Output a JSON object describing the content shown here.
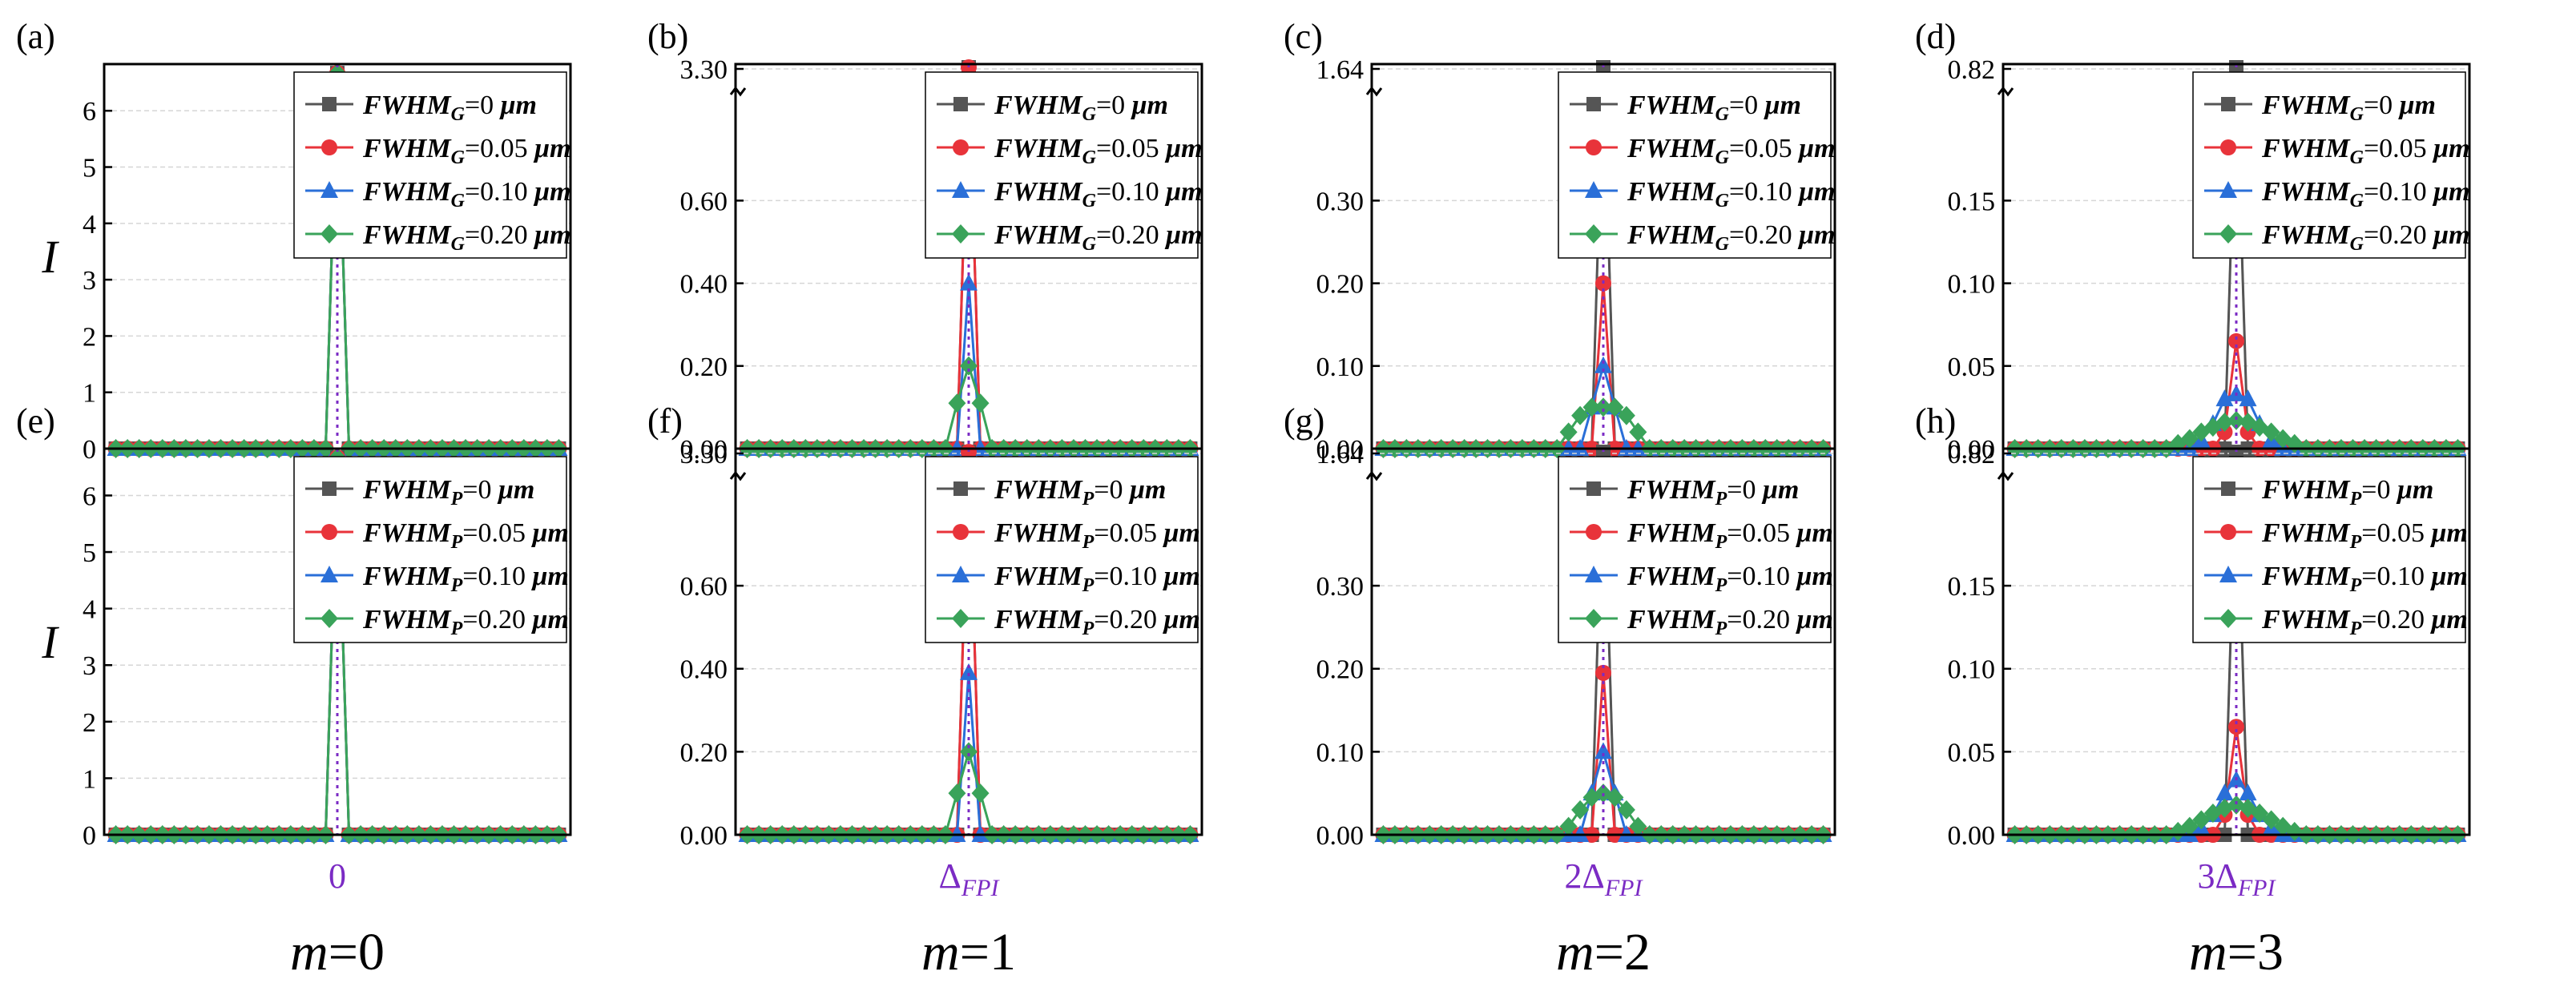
{
  "chart_data": {
    "type": "line",
    "layout": "2x4 grid of panels",
    "marker_order": [
      "square",
      "circle",
      "triangle",
      "diamond"
    ],
    "colors": [
      "#555555",
      "#e8333a",
      "#2a6fd8",
      "#3aa35a"
    ],
    "center_line_color": "#7b2bc4",
    "x_positions": [
      -19,
      -18,
      -17,
      -16,
      -15,
      -14,
      -13,
      -12,
      -11,
      -10,
      -9,
      -8,
      -7,
      -6,
      -5,
      -4,
      -3,
      -2,
      -1,
      0,
      1,
      2,
      3,
      4,
      5,
      6,
      7,
      8,
      9,
      10,
      11,
      12,
      13,
      14,
      15,
      16,
      17,
      18,
      19
    ],
    "columns": [
      {
        "x_center_label": "0",
        "m_label": "m=0",
        "m_var": "m",
        "m_rest": "=0"
      },
      {
        "x_center_label": "ΔFPI",
        "x_center_prefix": "",
        "x_center_main": "Δ",
        "x_center_sub": "FPI",
        "m_label": "m=1",
        "m_var": "m",
        "m_rest": "=1"
      },
      {
        "x_center_label": "2ΔFPI",
        "x_center_prefix": "2",
        "x_center_main": "Δ",
        "x_center_sub": "FPI",
        "m_label": "m=2",
        "m_var": "m",
        "m_rest": "=2"
      },
      {
        "x_center_label": "3ΔFPI",
        "x_center_prefix": "3",
        "x_center_main": "Δ",
        "x_center_sub": "FPI",
        "m_label": "m=3",
        "m_var": "m",
        "m_rest": "=3"
      }
    ],
    "panels": [
      {
        "id": "a",
        "label": "(a)",
        "row": 0,
        "col": 0,
        "ylabel": "I",
        "yaxis": "linear",
        "ylim": [
          0,
          6.8
        ],
        "yticks": [
          "0",
          "1",
          "2",
          "3",
          "4",
          "5",
          "6"
        ],
        "ytick_values": [
          0,
          1,
          2,
          3,
          4,
          5,
          6
        ],
        "legend_sub": "G",
        "legend_title": "FWHM",
        "series": [
          {
            "name": "FWHMG=0 μm",
            "value_text": "=0",
            "points": [
              [
                0,
                6.67
              ]
            ]
          },
          {
            "name": "FWHMG=0.05 μm",
            "value_text": "=0.05",
            "points": [
              [
                0,
                6.67
              ]
            ]
          },
          {
            "name": "FWHMG=0.10 μm",
            "value_text": "=0.10",
            "points": [
              [
                0,
                6.67
              ]
            ]
          },
          {
            "name": "FWHMG=0.20 μm",
            "value_text": "=0.20",
            "points": [
              [
                0,
                6.67
              ]
            ]
          }
        ]
      },
      {
        "id": "b",
        "label": "(b)",
        "row": 0,
        "col": 1,
        "yaxis": "broken",
        "yticks": [
          "0.00",
          "0.20",
          "0.40",
          "0.60",
          "3.30"
        ],
        "ytick_values": [
          0,
          0.2,
          0.4,
          0.6,
          3.3
        ],
        "legend_sub": "G",
        "legend_title": "FWHM",
        "series": [
          {
            "name": "FWHMG=0 μm",
            "value_text": "=0",
            "points": [
              [
                0,
                3.3
              ]
            ]
          },
          {
            "name": "FWHMG=0.05 μm",
            "value_text": "=0.05",
            "points": [
              [
                -1,
                0.0
              ],
              [
                0,
                0.79
              ],
              [
                1,
                0.0
              ]
            ]
          },
          {
            "name": "FWHMG=0.10 μm",
            "value_text": "=0.10",
            "points": [
              [
                -1,
                0.0
              ],
              [
                0,
                0.4
              ],
              [
                1,
                0.0
              ]
            ]
          },
          {
            "name": "FWHMG=0.20 μm",
            "value_text": "=0.20",
            "points": [
              [
                -2,
                0.0
              ],
              [
                -1,
                0.11
              ],
              [
                0,
                0.2
              ],
              [
                1,
                0.11
              ],
              [
                2,
                0.0
              ]
            ]
          }
        ]
      },
      {
        "id": "c",
        "label": "(c)",
        "row": 0,
        "col": 2,
        "yaxis": "broken",
        "yticks": [
          "0.00",
          "0.10",
          "0.20",
          "0.30",
          "1.64"
        ],
        "ytick_values": [
          0,
          0.1,
          0.2,
          0.3,
          1.64
        ],
        "legend_sub": "G",
        "legend_title": "FWHM",
        "series": [
          {
            "name": "FWHMG=0 μm",
            "value_text": "=0",
            "points": [
              [
                0,
                1.64
              ]
            ]
          },
          {
            "name": "FWHMG=0.05 μm",
            "value_text": "=0.05",
            "points": [
              [
                -1,
                0.0
              ],
              [
                0,
                0.2
              ],
              [
                1,
                0.0
              ]
            ]
          },
          {
            "name": "FWHMG=0.10 μm",
            "value_text": "=0.10",
            "points": [
              [
                -2,
                0.0
              ],
              [
                -1,
                0.05
              ],
              [
                0,
                0.1
              ],
              [
                1,
                0.05
              ],
              [
                2,
                0.0
              ]
            ]
          },
          {
            "name": "FWHMG=0.20 μm",
            "value_text": "=0.20",
            "points": [
              [
                -4,
                0.0
              ],
              [
                -3,
                0.02
              ],
              [
                -2,
                0.04
              ],
              [
                -1,
                0.05
              ],
              [
                0,
                0.05
              ],
              [
                1,
                0.05
              ],
              [
                2,
                0.04
              ],
              [
                3,
                0.02
              ],
              [
                4,
                0.0
              ]
            ]
          }
        ]
      },
      {
        "id": "d",
        "label": "(d)",
        "row": 0,
        "col": 3,
        "yaxis": "broken",
        "yticks": [
          "0.00",
          "0.05",
          "0.10",
          "0.15",
          "0.82"
        ],
        "ytick_values": [
          0,
          0.05,
          0.1,
          0.15,
          0.82
        ],
        "legend_sub": "G",
        "legend_title": "FWHM",
        "series": [
          {
            "name": "FWHMG=0 μm",
            "value_text": "=0",
            "points": [
              [
                0,
                0.82
              ]
            ]
          },
          {
            "name": "FWHMG=0.05 μm",
            "value_text": "=0.05",
            "points": [
              [
                -2,
                0.0
              ],
              [
                -1,
                0.01
              ],
              [
                0,
                0.065
              ],
              [
                1,
                0.01
              ],
              [
                2,
                0.0
              ]
            ]
          },
          {
            "name": "FWHMG=0.10 μm",
            "value_text": "=0.10",
            "points": [
              [
                -4,
                0.0
              ],
              [
                -3,
                0.005
              ],
              [
                -2,
                0.015
              ],
              [
                -1,
                0.03
              ],
              [
                0,
                0.033
              ],
              [
                1,
                0.03
              ],
              [
                2,
                0.015
              ],
              [
                3,
                0.005
              ],
              [
                4,
                0.0
              ]
            ]
          },
          {
            "name": "FWHMG=0.20 μm",
            "value_text": "=0.20",
            "points": [
              [
                -5,
                0.003
              ],
              [
                -4,
                0.006
              ],
              [
                -3,
                0.01
              ],
              [
                -2,
                0.013
              ],
              [
                -1,
                0.016
              ],
              [
                0,
                0.017
              ],
              [
                1,
                0.016
              ],
              [
                2,
                0.013
              ],
              [
                3,
                0.01
              ],
              [
                4,
                0.006
              ],
              [
                5,
                0.003
              ]
            ]
          }
        ]
      },
      {
        "id": "e",
        "label": "(e)",
        "row": 1,
        "col": 0,
        "ylabel": "I",
        "yaxis": "linear",
        "ylim": [
          0,
          6.8
        ],
        "yticks": [
          "0",
          "1",
          "2",
          "3",
          "4",
          "5",
          "6"
        ],
        "ytick_values": [
          0,
          1,
          2,
          3,
          4,
          5,
          6
        ],
        "legend_sub": "P",
        "legend_title": "FWHM",
        "series": [
          {
            "name": "FWHMP=0 μm",
            "value_text": "=0",
            "points": [
              [
                0,
                6.67
              ]
            ]
          },
          {
            "name": "FWHMP=0.05 μm",
            "value_text": "=0.05",
            "points": [
              [
                0,
                6.67
              ]
            ]
          },
          {
            "name": "FWHMP=0.10 μm",
            "value_text": "=0.10",
            "points": [
              [
                0,
                6.67
              ]
            ]
          },
          {
            "name": "FWHMP=0.20 μm",
            "value_text": "=0.20",
            "points": [
              [
                0,
                6.67
              ]
            ]
          }
        ]
      },
      {
        "id": "f",
        "label": "(f)",
        "row": 1,
        "col": 1,
        "yaxis": "broken",
        "yticks": [
          "0.00",
          "0.20",
          "0.40",
          "0.60",
          "3.30"
        ],
        "ytick_values": [
          0,
          0.2,
          0.4,
          0.6,
          3.3
        ],
        "legend_sub": "P",
        "legend_title": "FWHM",
        "series": [
          {
            "name": "FWHMP=0 μm",
            "value_text": "=0",
            "points": [
              [
                0,
                3.3
              ]
            ]
          },
          {
            "name": "FWHMP=0.05 μm",
            "value_text": "=0.05",
            "points": [
              [
                -1,
                0.0
              ],
              [
                0,
                0.79
              ],
              [
                1,
                0.0
              ]
            ]
          },
          {
            "name": "FWHMP=0.10 μm",
            "value_text": "=0.10",
            "points": [
              [
                -1,
                0.0
              ],
              [
                0,
                0.39
              ],
              [
                1,
                0.0
              ]
            ]
          },
          {
            "name": "FWHMP=0.20 μm",
            "value_text": "=0.20",
            "points": [
              [
                -2,
                0.0
              ],
              [
                -1,
                0.1
              ],
              [
                0,
                0.2
              ],
              [
                1,
                0.1
              ],
              [
                2,
                0.0
              ]
            ]
          }
        ]
      },
      {
        "id": "g",
        "label": "(g)",
        "row": 1,
        "col": 2,
        "yaxis": "broken",
        "yticks": [
          "0.00",
          "0.10",
          "0.20",
          "0.30",
          "1.64"
        ],
        "ytick_values": [
          0,
          0.1,
          0.2,
          0.3,
          1.64
        ],
        "legend_sub": "P",
        "legend_title": "FWHM",
        "series": [
          {
            "name": "FWHMP=0 μm",
            "value_text": "=0",
            "points": [
              [
                0,
                1.64
              ]
            ]
          },
          {
            "name": "FWHMP=0.05 μm",
            "value_text": "=0.05",
            "points": [
              [
                -1,
                0.0
              ],
              [
                0,
                0.195
              ],
              [
                1,
                0.0
              ]
            ]
          },
          {
            "name": "FWHMP=0.10 μm",
            "value_text": "=0.10",
            "points": [
              [
                -2,
                0.0
              ],
              [
                -1,
                0.05
              ],
              [
                0,
                0.1
              ],
              [
                1,
                0.05
              ],
              [
                2,
                0.0
              ]
            ]
          },
          {
            "name": "FWHMP=0.20 μm",
            "value_text": "=0.20",
            "points": [
              [
                -4,
                0.0
              ],
              [
                -3,
                0.01
              ],
              [
                -2,
                0.03
              ],
              [
                -1,
                0.045
              ],
              [
                0,
                0.05
              ],
              [
                1,
                0.045
              ],
              [
                2,
                0.03
              ],
              [
                3,
                0.01
              ],
              [
                4,
                0.0
              ]
            ]
          }
        ]
      },
      {
        "id": "h",
        "label": "(h)",
        "row": 1,
        "col": 3,
        "yaxis": "broken",
        "yticks": [
          "0.00",
          "0.05",
          "0.10",
          "0.15",
          "0.82"
        ],
        "ytick_values": [
          0,
          0.05,
          0.1,
          0.15,
          0.82
        ],
        "legend_sub": "P",
        "legend_title": "FWHM",
        "series": [
          {
            "name": "FWHMP=0 μm",
            "value_text": "=0",
            "points": [
              [
                0,
                0.82
              ]
            ]
          },
          {
            "name": "FWHMP=0.05 μm",
            "value_text": "=0.05",
            "points": [
              [
                -2,
                0.0
              ],
              [
                -1,
                0.012
              ],
              [
                0,
                0.065
              ],
              [
                1,
                0.012
              ],
              [
                2,
                0.0
              ]
            ]
          },
          {
            "name": "FWHMP=0.10 μm",
            "value_text": "=0.10",
            "points": [
              [
                -4,
                0.0
              ],
              [
                -3,
                0.004
              ],
              [
                -2,
                0.012
              ],
              [
                -1,
                0.025
              ],
              [
                0,
                0.033
              ],
              [
                1,
                0.025
              ],
              [
                2,
                0.012
              ],
              [
                3,
                0.004
              ],
              [
                4,
                0.0
              ]
            ]
          },
          {
            "name": "FWHMP=0.20 μm",
            "value_text": "=0.20",
            "points": [
              [
                -5,
                0.002
              ],
              [
                -4,
                0.005
              ],
              [
                -3,
                0.009
              ],
              [
                -2,
                0.013
              ],
              [
                -1,
                0.016
              ],
              [
                0,
                0.018
              ],
              [
                1,
                0.016
              ],
              [
                2,
                0.013
              ],
              [
                3,
                0.009
              ],
              [
                4,
                0.005
              ],
              [
                5,
                0.002
              ]
            ]
          }
        ]
      }
    ],
    "legend_unit": "μm"
  }
}
